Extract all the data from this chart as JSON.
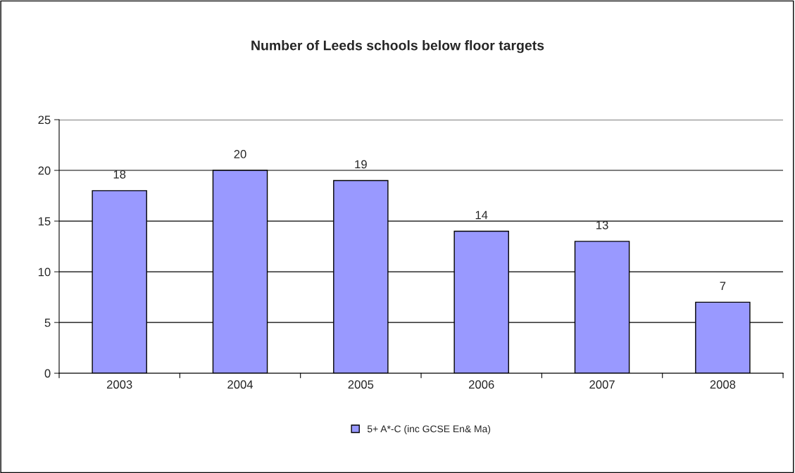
{
  "chart_data": {
    "type": "bar",
    "title": "Number of Leeds schools below floor targets",
    "categories": [
      "2003",
      "2004",
      "2005",
      "2006",
      "2007",
      "2008"
    ],
    "series": [
      {
        "name": "5+ A*-C (inc GCSE En& Ma)",
        "color": "#9999ff",
        "values": [
          18,
          20,
          19,
          14,
          13,
          7
        ]
      }
    ],
    "ylim": [
      0,
      25
    ],
    "yticks": [
      0,
      5,
      10,
      15,
      20,
      25
    ],
    "grid": "y",
    "legend": "bottom",
    "data_labels": true
  }
}
